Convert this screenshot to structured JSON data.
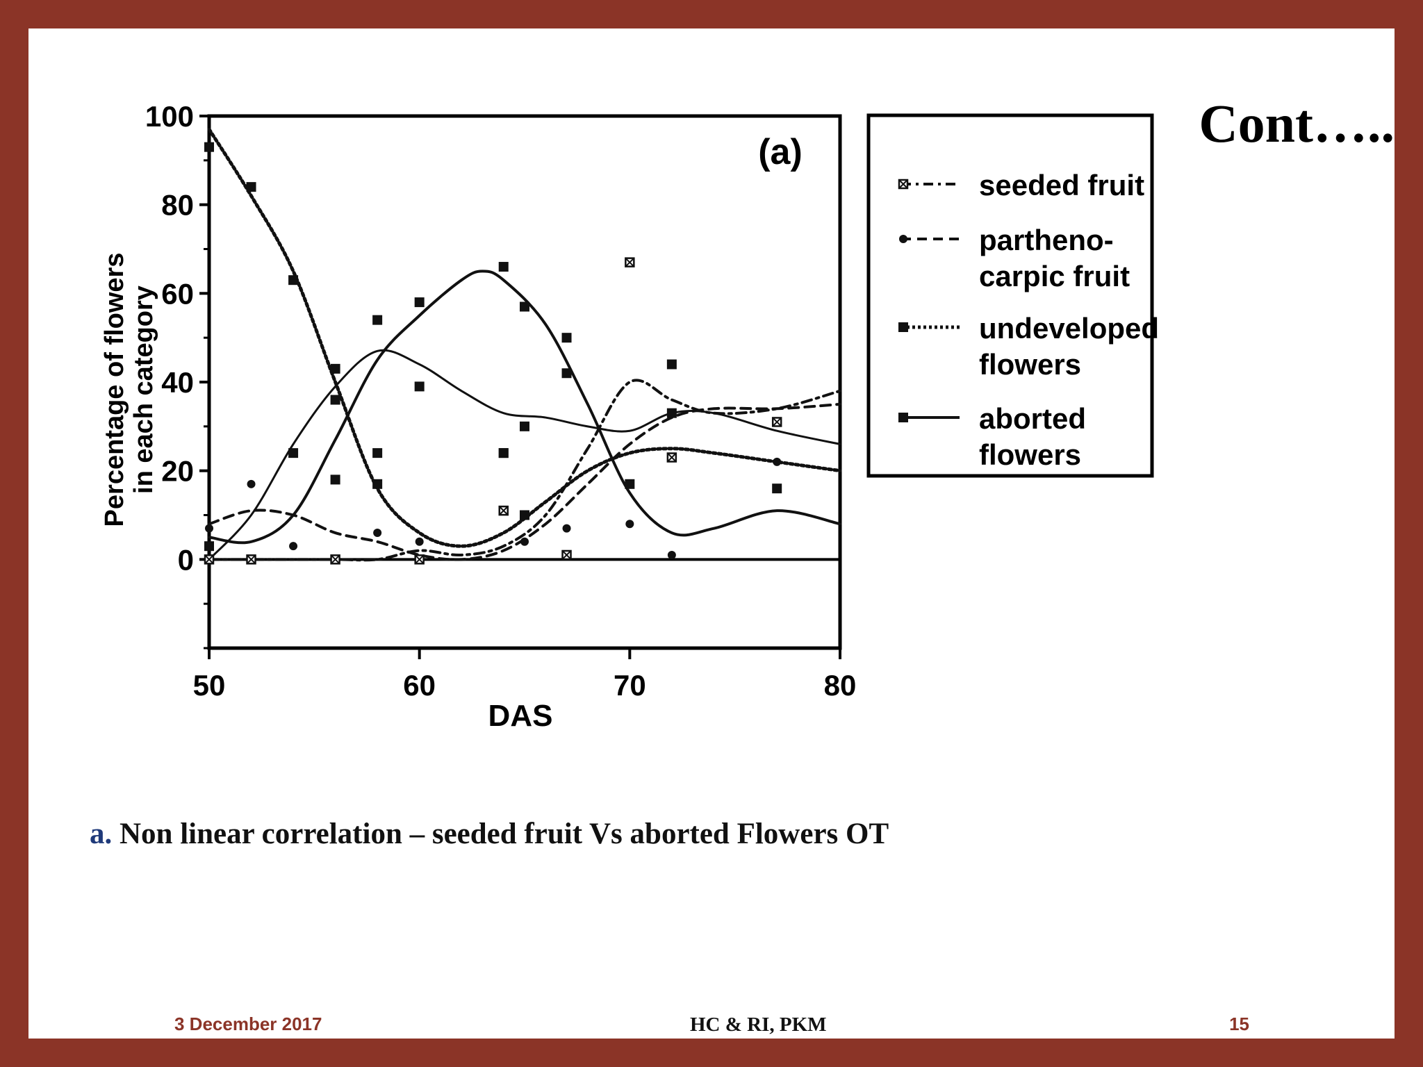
{
  "slide": {
    "title": "Cont…..",
    "caption_letter": "a.",
    "caption_text": " Non linear correlation – seeded fruit Vs aborted Flowers OT",
    "footer_date": "3 December 2017",
    "footer_center": "HC & RI, PKM",
    "page_number": "15"
  },
  "chart_data": {
    "type": "line",
    "panel_label": "(a)",
    "xlabel": "DAS",
    "ylabel": [
      "Percentage of flowers",
      "in each category"
    ],
    "xlim": [
      50,
      80
    ],
    "ylim": [
      -20,
      100
    ],
    "xticks": [
      50,
      60,
      70,
      80
    ],
    "yticks": [
      0,
      20,
      40,
      60,
      80,
      100
    ],
    "legend_position": "right",
    "series": [
      {
        "name": "seeded fruit",
        "dash": "dash-dot",
        "marker": "x-square",
        "points": [
          [
            50,
            0
          ],
          [
            52,
            0
          ],
          [
            54,
            0
          ],
          [
            56,
            0
          ],
          [
            58,
            0
          ],
          [
            60,
            2
          ],
          [
            62,
            1
          ],
          [
            64,
            3
          ],
          [
            66,
            10
          ],
          [
            68,
            25
          ],
          [
            70,
            40
          ],
          [
            72,
            36
          ],
          [
            74,
            33
          ],
          [
            77,
            34
          ],
          [
            80,
            38
          ]
        ],
        "markers": [
          [
            50,
            0
          ],
          [
            52,
            0
          ],
          [
            56,
            0
          ],
          [
            60,
            0
          ],
          [
            64,
            11
          ],
          [
            67,
            1
          ],
          [
            70,
            67
          ],
          [
            72,
            23
          ],
          [
            77,
            31
          ]
        ]
      },
      {
        "name": "partheno-carpic fruit",
        "dash": "dash",
        "marker": "dot",
        "points": [
          [
            50,
            8
          ],
          [
            52,
            11
          ],
          [
            54,
            10
          ],
          [
            56,
            6
          ],
          [
            58,
            4
          ],
          [
            60,
            1
          ],
          [
            62,
            0
          ],
          [
            64,
            2
          ],
          [
            66,
            8
          ],
          [
            68,
            17
          ],
          [
            70,
            26
          ],
          [
            72,
            32
          ],
          [
            74,
            34
          ],
          [
            77,
            34
          ],
          [
            80,
            35
          ]
        ],
        "markers": [
          [
            50,
            7
          ],
          [
            52,
            17
          ],
          [
            54,
            3
          ],
          [
            58,
            6
          ],
          [
            60,
            4
          ],
          [
            65,
            4
          ],
          [
            67,
            7
          ],
          [
            70,
            8
          ],
          [
            72,
            1
          ],
          [
            77,
            22
          ]
        ]
      },
      {
        "name": "undeveloped flowers",
        "dash": "dotted",
        "marker": "square",
        "points": [
          [
            50,
            97
          ],
          [
            52,
            82
          ],
          [
            54,
            65
          ],
          [
            56,
            40
          ],
          [
            58,
            16
          ],
          [
            60,
            6
          ],
          [
            62,
            3
          ],
          [
            64,
            6
          ],
          [
            66,
            13
          ],
          [
            68,
            20
          ],
          [
            70,
            24
          ],
          [
            72,
            25
          ],
          [
            74,
            24
          ],
          [
            77,
            22
          ],
          [
            80,
            20
          ]
        ],
        "markers": [
          [
            50,
            93
          ],
          [
            52,
            84
          ],
          [
            54,
            63
          ],
          [
            56,
            43
          ],
          [
            56,
            36
          ],
          [
            58,
            17
          ],
          [
            60,
            39
          ],
          [
            64,
            24
          ],
          [
            65,
            10
          ],
          [
            67,
            42
          ],
          [
            70,
            17
          ],
          [
            72,
            33
          ],
          [
            77,
            16
          ]
        ]
      },
      {
        "name": "aborted flowers",
        "dash": "solid",
        "marker": "square",
        "points": [
          [
            50,
            5
          ],
          [
            52,
            4
          ],
          [
            54,
            10
          ],
          [
            56,
            27
          ],
          [
            58,
            45
          ],
          [
            60,
            55
          ],
          [
            62,
            63
          ],
          [
            63,
            65
          ],
          [
            64,
            63
          ],
          [
            66,
            53
          ],
          [
            68,
            35
          ],
          [
            70,
            15
          ],
          [
            72,
            6
          ],
          [
            74,
            7
          ],
          [
            77,
            11
          ],
          [
            80,
            8
          ]
        ],
        "markers": [
          [
            50,
            3
          ],
          [
            54,
            24
          ],
          [
            56,
            18
          ],
          [
            58,
            54
          ],
          [
            58,
            24
          ],
          [
            60,
            58
          ],
          [
            64,
            66
          ],
          [
            64,
            24
          ],
          [
            65,
            57
          ],
          [
            67,
            50
          ],
          [
            72,
            44
          ]
        ]
      },
      {
        "name": "",
        "dash": "solid-thin",
        "marker": "none",
        "points": [
          [
            50,
            0
          ],
          [
            52,
            10
          ],
          [
            54,
            26
          ],
          [
            56,
            39
          ],
          [
            58,
            47
          ],
          [
            60,
            44
          ],
          [
            62,
            38
          ],
          [
            64,
            33
          ],
          [
            66,
            32
          ],
          [
            68,
            30
          ],
          [
            70,
            29
          ],
          [
            72,
            33
          ],
          [
            74,
            33
          ],
          [
            77,
            29
          ],
          [
            80,
            26
          ]
        ],
        "markers": [
          [
            65,
            30
          ]
        ]
      }
    ]
  }
}
